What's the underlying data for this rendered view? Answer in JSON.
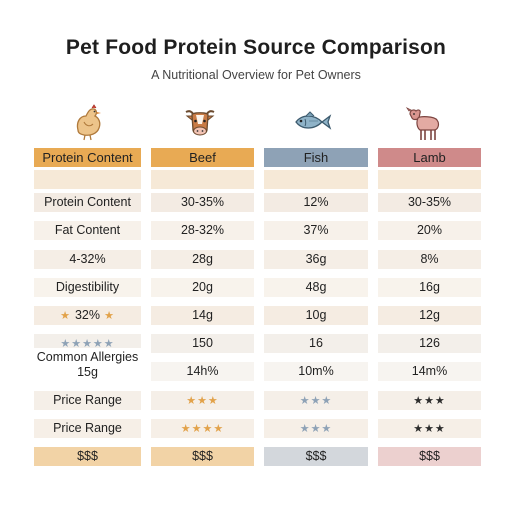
{
  "title": "Pet Food Protein Source Comparison",
  "subtitle": "A Nutritional Overview for Pet Owners",
  "icons": [
    "chicken-icon",
    "cow-icon",
    "fish-icon",
    "lamb-icon"
  ],
  "columns": [
    {
      "header": "Protein Content",
      "accent": "#e8aa54",
      "cells": [
        "",
        "Protein Content",
        "Fat Content",
        "4-32%",
        "Digestibility",
        "32%",
        "",
        "Common Allergies 15g",
        "Price Range",
        "Price Range",
        "$$$"
      ],
      "star_cells": {
        "5": "★",
        "6": "★★★★★"
      }
    },
    {
      "header": "Beef",
      "accent": "#e8aa54",
      "cells": [
        "",
        "30-35%",
        "28-32%",
        "28g",
        "20g",
        "14g",
        "150",
        "14h%",
        "",
        "",
        "$$$"
      ],
      "star_cells": {
        "8": "★★★",
        "9": "★★★★"
      }
    },
    {
      "header": "Fish",
      "accent": "#8ea2b6",
      "cells": [
        "",
        "12%",
        "37%",
        "36g",
        "48g",
        "10g",
        "16",
        "10m%",
        "",
        "",
        "$$$"
      ],
      "star_cells": {
        "8": "★★★",
        "9": "★★★"
      }
    },
    {
      "header": "Lamb",
      "accent": "#cf8a8a",
      "cells": [
        "",
        "30-35%",
        "20%",
        "8%",
        "16g",
        "12g",
        "126",
        "14m%",
        "",
        "",
        "$$$"
      ],
      "star_cells": {
        "8": "★★★",
        "9": "★★★"
      }
    }
  ],
  "row_backgrounds": [
    "#f6e9d7",
    "#f3ebe3",
    "#f7f1ea",
    "#f5eee6",
    "#f8f3ec",
    "#f5ece2",
    "#f3efea",
    "#f7f4f0",
    "#f5efe8",
    "#f6efe7"
  ],
  "star_colors": [
    "#e2a24a",
    "#e2a24a",
    "#8ea2b6",
    "#2c2c2c"
  ]
}
